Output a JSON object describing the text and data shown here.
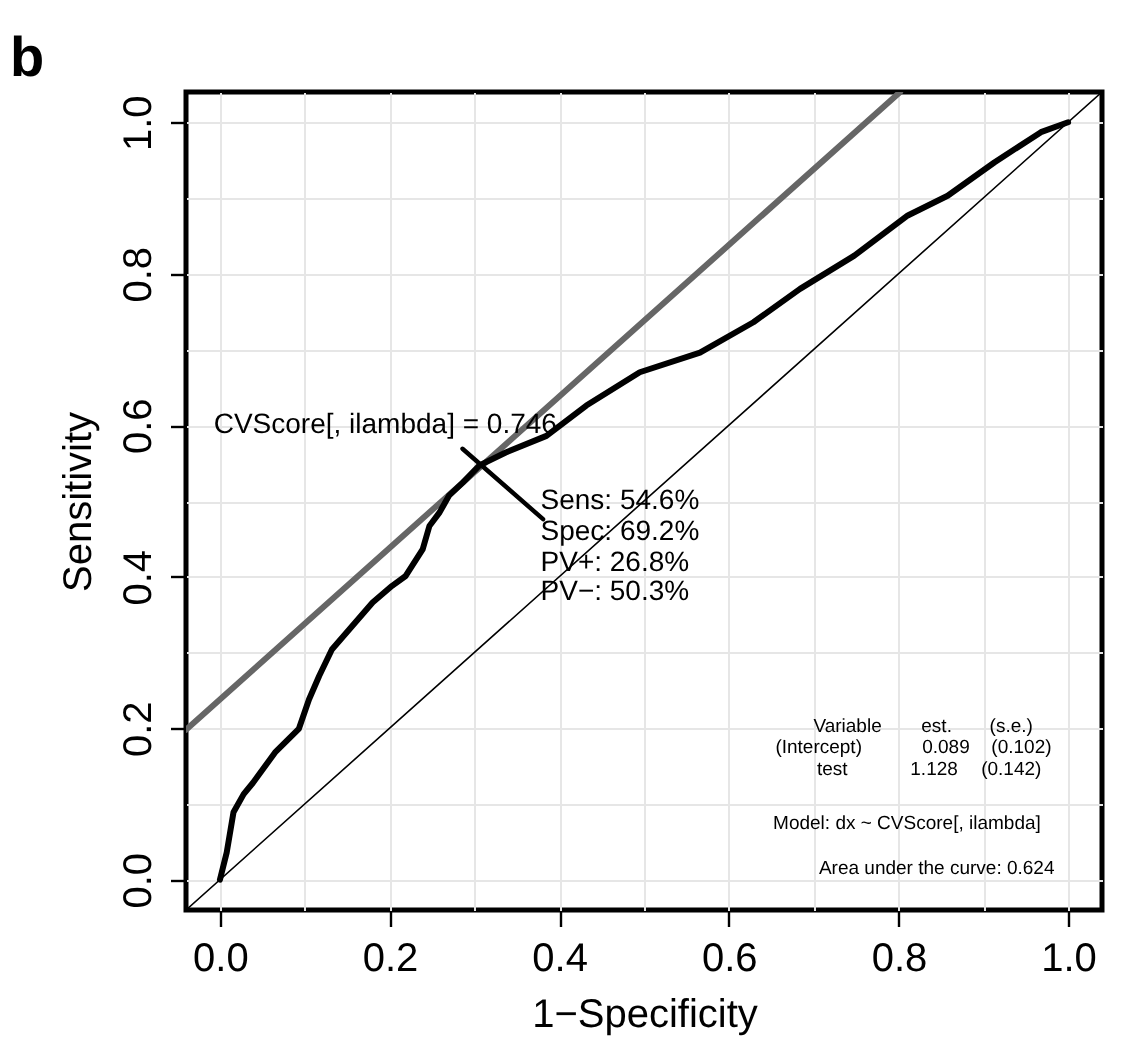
{
  "chart_data": {
    "type": "line",
    "title": "b",
    "xlabel": "1−Specificity",
    "ylabel": "Sensitivity",
    "xlim": [
      -0.04,
      1.04
    ],
    "ylim": [
      -0.04,
      1.04
    ],
    "xticks": [
      {
        "value": 0,
        "label": "0.0"
      },
      {
        "value": 0.1,
        "label": null
      },
      0.2,
      {
        "value": 0.3,
        "label": null
      },
      0.4,
      {
        "value": 0.5,
        "label": null
      },
      0.6,
      {
        "value": 0.7,
        "label": null
      },
      0.8,
      {
        "value": 0.9,
        "label": null
      },
      {
        "value": 1,
        "label": "1.0"
      }
    ],
    "yticks": [
      {
        "value": 0,
        "label": "0.0"
      },
      {
        "value": 0.1,
        "label": null
      },
      0.2,
      {
        "value": 0.3,
        "label": null
      },
      0.4,
      {
        "value": 0.5,
        "label": null
      },
      0.6,
      {
        "value": 0.7,
        "label": null
      },
      0.8,
      {
        "value": 0.9,
        "label": null
      },
      {
        "value": 1,
        "label": "1.0"
      }
    ],
    "grid": true,
    "marker": "none",
    "series": [
      {
        "color": "#000000",
        "x": [
          -0.04,
          1.04
        ],
        "values": [
          -0.04,
          1.04
        ]
      },
      {
        "color": "#666666",
        "x": [
          -0.04,
          0.802
        ],
        "values": [
          0.198,
          1.04
        ]
      },
      {
        "color": "#000000",
        "x": [
          0,
          0.008,
          0.016,
          0.028,
          0.039,
          0.065,
          0.093,
          0.105,
          0.117,
          0.132,
          0.156,
          0.18,
          0.203,
          0.219,
          0.239,
          0.247,
          0.259,
          0.27,
          0.286,
          0.306,
          0.337,
          0.385,
          0.432,
          0.495,
          0.566,
          0.629,
          0.684,
          0.748,
          0.811,
          0.858,
          0.913,
          0.968,
          1
        ],
        "values": [
          0,
          0.036,
          0.089,
          0.113,
          0.128,
          0.168,
          0.199,
          0.238,
          0.269,
          0.304,
          0.335,
          0.366,
          0.388,
          0.401,
          0.436,
          0.467,
          0.485,
          0.507,
          0.524,
          0.547,
          0.564,
          0.586,
          0.626,
          0.67,
          0.696,
          0.736,
          0.78,
          0.824,
          0.877,
          0.903,
          0.947,
          0.987,
          1
        ]
      },
      {
        "color": "#000000",
        "x": [
          0.286,
          0.381
        ],
        "values": [
          0.569,
          0.476
        ]
      }
    ],
    "annotations": [
      "CVScore[, ilambda] = 0.746",
      "Sens: 54.6%",
      "Spec: 69.2%",
      "PV+: 26.8%",
      "PV−: 50.3%",
      "Variable",
      "est.",
      "(s.e.)",
      "(Intercept)",
      "0.089",
      "(0.102)",
      "test",
      "1.128",
      "(0.142)",
      "Model:  dx ~ CVScore[, ilambda]",
      "Area under the curve: 0.624"
    ]
  }
}
